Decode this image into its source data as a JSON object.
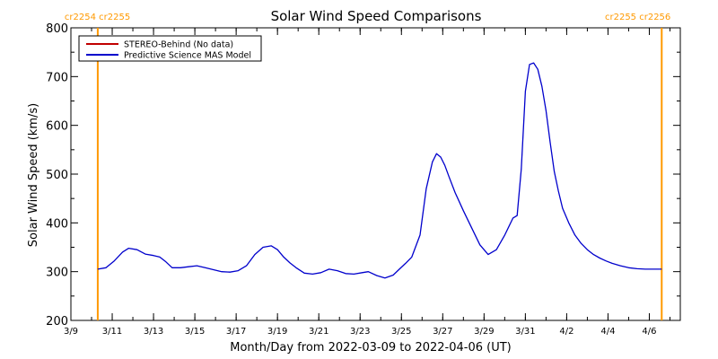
{
  "chart_data": {
    "type": "line",
    "title": "Solar Wind Speed Comparisons",
    "xlabel": "Month/Day from 2022-03-09 to 2022-04-06 (UT)",
    "ylabel": "Solar Wind Speed (km/s)",
    "ylim": [
      200,
      800
    ],
    "yticks": [
      200,
      300,
      400,
      500,
      600,
      700,
      800
    ],
    "xlim_days": [
      0,
      29.5
    ],
    "xticks": [
      {
        "day": 0,
        "label": "3/9"
      },
      {
        "day": 2,
        "label": "3/11"
      },
      {
        "day": 4,
        "label": "3/13"
      },
      {
        "day": 6,
        "label": "3/15"
      },
      {
        "day": 8,
        "label": "3/17"
      },
      {
        "day": 10,
        "label": "3/19"
      },
      {
        "day": 12,
        "label": "3/21"
      },
      {
        "day": 14,
        "label": "3/23"
      },
      {
        "day": 16,
        "label": "3/25"
      },
      {
        "day": 18,
        "label": "3/27"
      },
      {
        "day": 20,
        "label": "3/29"
      },
      {
        "day": 22,
        "label": "3/31"
      },
      {
        "day": 24,
        "label": "4/2"
      },
      {
        "day": 26,
        "label": "4/4"
      },
      {
        "day": 28,
        "label": "4/6"
      }
    ],
    "legend": {
      "placement": "top-left",
      "entries": [
        {
          "label": "STEREO-Behind (No data)",
          "color": "#c00000"
        },
        {
          "label": "Predictive Science MAS Model",
          "color": "#0000cc"
        }
      ]
    },
    "markers": [
      {
        "day": 1.3,
        "label": "cr2254 cr2255",
        "color": "#ff9900",
        "label_side": "right"
      },
      {
        "day": 28.6,
        "label": "cr2255 cr2256",
        "color": "#ff9900",
        "label_side": "left"
      }
    ],
    "series": [
      {
        "name": "Predictive Science MAS Model",
        "color": "#0000cc",
        "x": [
          1.3,
          1.7,
          2.1,
          2.5,
          2.8,
          3.2,
          3.6,
          4.0,
          4.3,
          4.6,
          4.9,
          5.3,
          5.7,
          6.1,
          6.5,
          6.9,
          7.3,
          7.7,
          8.1,
          8.5,
          8.9,
          9.3,
          9.7,
          10.0,
          10.3,
          10.6,
          10.9,
          11.3,
          11.7,
          12.1,
          12.5,
          12.9,
          13.3,
          13.7,
          14.1,
          14.4,
          14.8,
          15.2,
          15.6,
          15.9,
          16.2,
          16.5,
          16.9,
          17.2,
          17.5,
          17.7,
          17.9,
          18.1,
          18.3,
          18.6,
          19.0,
          19.4,
          19.8,
          20.2,
          20.6,
          21.0,
          21.4,
          21.6,
          21.8,
          22.0,
          22.2,
          22.4,
          22.6,
          22.8,
          23.0,
          23.2,
          23.4,
          23.6,
          23.8,
          24.1,
          24.4,
          24.7,
          25.0,
          25.3,
          25.6,
          25.9,
          26.2,
          26.6,
          27.0,
          27.4,
          27.8,
          28.2,
          28.6
        ],
        "y": [
          305,
          308,
          322,
          340,
          348,
          345,
          336,
          333,
          330,
          320,
          308,
          308,
          310,
          312,
          308,
          304,
          300,
          299,
          302,
          312,
          335,
          350,
          353,
          345,
          330,
          318,
          308,
          297,
          295,
          298,
          305,
          302,
          296,
          295,
          298,
          300,
          292,
          287,
          293,
          305,
          317,
          330,
          375,
          470,
          525,
          542,
          535,
          518,
          495,
          462,
          425,
          390,
          355,
          335,
          345,
          375,
          410,
          415,
          510,
          670,
          725,
          728,
          715,
          680,
          630,
          565,
          505,
          465,
          430,
          400,
          375,
          358,
          345,
          335,
          328,
          322,
          317,
          312,
          308,
          306,
          305,
          305,
          305
        ]
      }
    ]
  }
}
